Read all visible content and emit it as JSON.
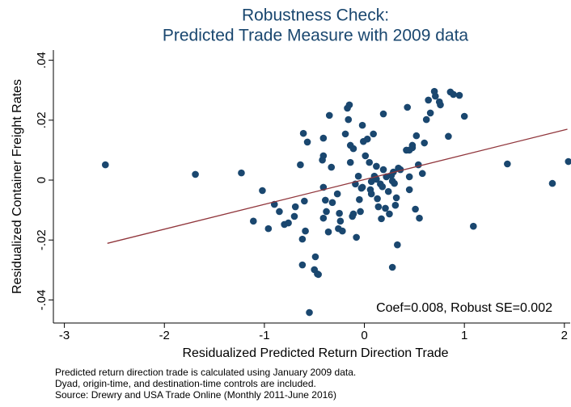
{
  "chart_data": {
    "type": "scatter",
    "title": [
      "Robustness Check:",
      "Predicted Trade Measure with 2009 data"
    ],
    "x_label": "Residualized Predicted Return Direction Trade",
    "y_label": "Residualized Container Freight Rates",
    "annotation": "Coef=0.008, Robust SE=0.002",
    "notes": [
      "Predicted return direction trade is calculated using January 2009 data.",
      "Dyad, origin-time, and destination-time controls are included.",
      "Source: Drewry and USA Trade Online (Monthly 2011-June 2016)"
    ],
    "xlim": [
      -3.11,
      2.05
    ],
    "ylim": [
      -0.0477,
      0.0434
    ],
    "xticks": [
      -3,
      -2,
      -1,
      0,
      1,
      2
    ],
    "yticks": [
      {
        "value": -0.04,
        "label": "-.04"
      },
      {
        "value": -0.02,
        "label": "-.02"
      },
      0,
      {
        "value": 0.02,
        "label": ".02"
      },
      {
        "value": 0.04,
        "label": ".04"
      }
    ],
    "color": "#1a476f",
    "x": [
      -2.59,
      -1.69,
      -1.23,
      -1.02,
      -1.11,
      -0.96,
      -0.9,
      -0.85,
      -0.8,
      -0.76,
      -0.7,
      -0.69,
      -0.62,
      -0.6,
      -0.61,
      -0.57,
      -0.64,
      -0.59,
      -0.62,
      -0.5,
      -0.47,
      -0.46,
      -0.49,
      -0.55,
      -0.41,
      -0.42,
      -0.41,
      -0.39,
      -0.38,
      -0.41,
      -0.35,
      -0.41,
      -0.36,
      -0.33,
      -0.32,
      -0.27,
      -0.26,
      -0.25,
      -0.24,
      -0.22,
      -0.19,
      -0.17,
      -0.15,
      -0.16,
      -0.14,
      -0.14,
      -0.12,
      -0.11,
      -0.11,
      -0.09,
      -0.08,
      -0.06,
      -0.05,
      -0.03,
      -0.02,
      -0.04,
      -0.02,
      -0.01,
      0.01,
      0.03,
      0.05,
      0.06,
      0.07,
      0.09,
      0.07,
      0.1,
      0.11,
      0.12,
      0.12,
      0.13,
      0.14,
      0.16,
      0.17,
      0.18,
      0.19,
      0.19,
      0.21,
      0.22,
      0.24,
      0.25,
      0.27,
      0.28,
      0.29,
      0.3,
      0.28,
      0.31,
      0.32,
      0.34,
      0.36,
      0.33,
      0.42,
      0.43,
      0.45,
      0.45,
      0.45,
      0.48,
      0.48,
      0.51,
      0.52,
      0.54,
      0.55,
      0.58,
      0.6,
      0.62,
      0.64,
      0.66,
      0.7,
      0.71,
      0.76,
      0.75,
      0.84,
      0.86,
      0.89,
      0.95,
      1.0,
      1.09,
      1.43,
      1.88,
      2.04
    ],
    "y": [
      0.0051,
      0.0019,
      0.0024,
      -0.0035,
      -0.0137,
      -0.0162,
      -0.0081,
      -0.0105,
      -0.0148,
      -0.0143,
      -0.0121,
      -0.0089,
      -0.0197,
      -0.007,
      0.0156,
      0.0127,
      0.0051,
      -0.017,
      -0.0283,
      -0.0299,
      -0.0313,
      -0.0315,
      -0.0256,
      -0.0442,
      0.0081,
      0.0067,
      -0.0024,
      -0.0067,
      -0.0105,
      0.014,
      0.0216,
      -0.0127,
      -0.0173,
      0.0043,
      -0.0075,
      -0.0046,
      -0.0162,
      -0.0111,
      -0.0137,
      -0.017,
      0.0154,
      0.024,
      0.0251,
      0.0202,
      0.0116,
      0.0059,
      -0.0121,
      -0.0113,
      0.0105,
      -0.0013,
      -0.0191,
      0.0013,
      -0.0065,
      -0.0027,
      -0.0024,
      -0.0105,
      0.0183,
      0.0129,
      0.0081,
      0.0137,
      0.0059,
      -0.0032,
      -0.0046,
      0.0154,
      -0.0005,
      0.0013,
      0.0008,
      0.0003,
      0.0046,
      -0.0062,
      -0.0089,
      -0.0013,
      -0.0129,
      -0.0022,
      0.0035,
      0.0221,
      -0.0094,
      0.0011,
      -0.0038,
      -0.0113,
      0.0016,
      -0.0003,
      0.0027,
      -0.0011,
      -0.0291,
      -0.0084,
      -0.0059,
      0.004,
      0.0035,
      -0.0216,
      0.01,
      0.0243,
      0.01,
      0.0011,
      -0.0032,
      0.0108,
      0.0116,
      -0.0097,
      0.0148,
      0.0051,
      -0.0127,
      0.0022,
      0.0124,
      0.0202,
      0.0267,
      0.0224,
      0.0296,
      0.028,
      0.0251,
      0.0261,
      0.0146,
      0.0294,
      0.0286,
      0.0283,
      0.0213,
      -0.0154,
      0.0054,
      -0.0011,
      0.0062
    ],
    "fit_line": {
      "color": "#90353b",
      "x": [
        -2.57,
        2.03
      ],
      "y": [
        -0.0211,
        0.017
      ]
    }
  }
}
